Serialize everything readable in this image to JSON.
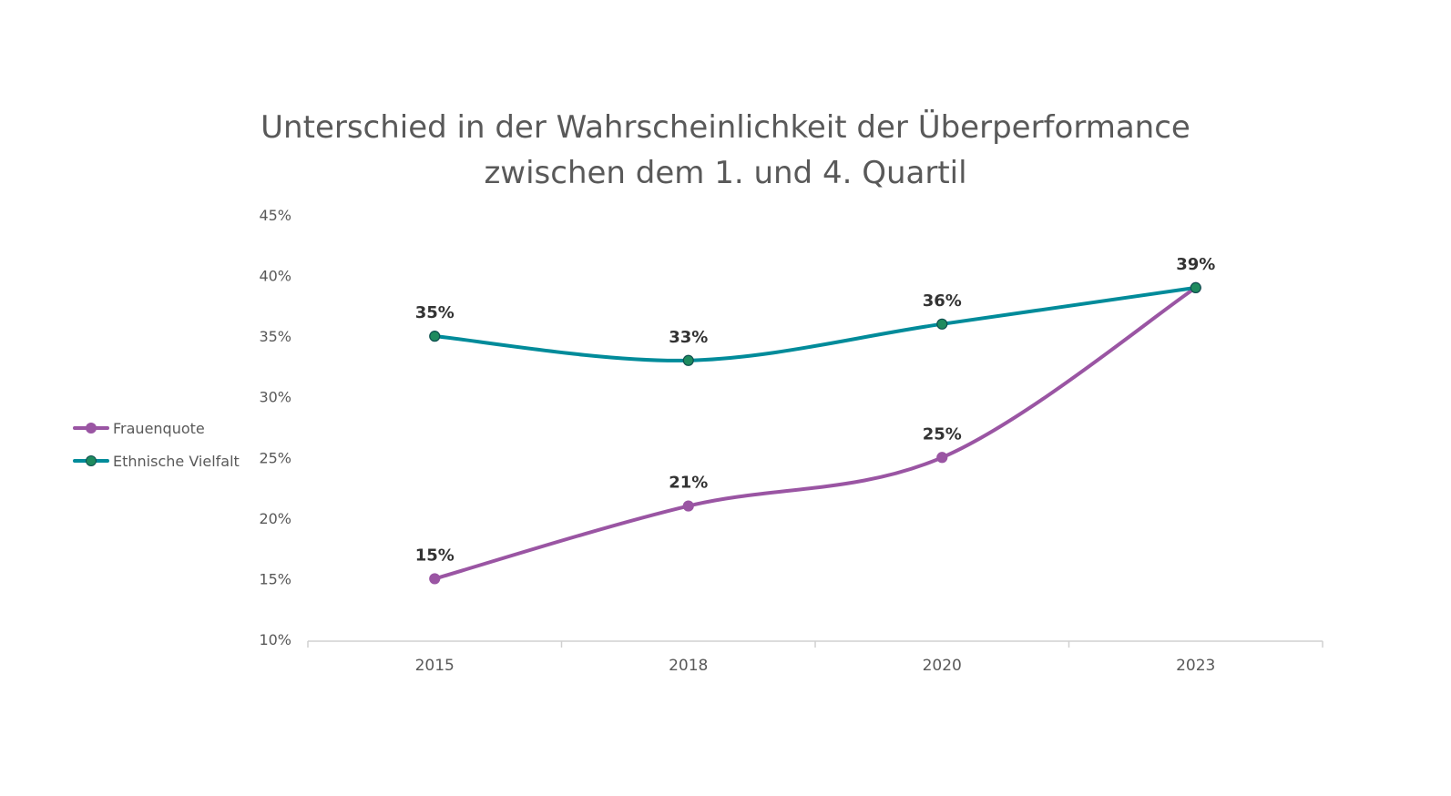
{
  "chart_data": {
    "type": "line",
    "title_lines": [
      "Unterschied in der Wahrscheinlichkeit der Überperformance",
      "zwischen dem 1. und 4. Quartil"
    ],
    "categories": [
      "2015",
      "2018",
      "2020",
      "2023"
    ],
    "y_ticks": [
      "10%",
      "15%",
      "20%",
      "25%",
      "30%",
      "35%",
      "40%",
      "45%"
    ],
    "ylim": [
      10,
      45
    ],
    "y_unit": "%",
    "grid": false,
    "legend_position": "left",
    "series": [
      {
        "name": "Frauenquote",
        "values": [
          15,
          21,
          25,
          39
        ],
        "labels": [
          "15%",
          "21%",
          "25%",
          "39%"
        ],
        "color": "#9A55A3",
        "marker_color": "#9A55A3"
      },
      {
        "name": "Ethnische Vielfalt",
        "values": [
          35,
          33,
          36,
          39
        ],
        "labels": [
          "35%",
          "33%",
          "36%",
          "39%"
        ],
        "color": "#008B9A",
        "marker_color": "#1E8A5E"
      }
    ]
  }
}
